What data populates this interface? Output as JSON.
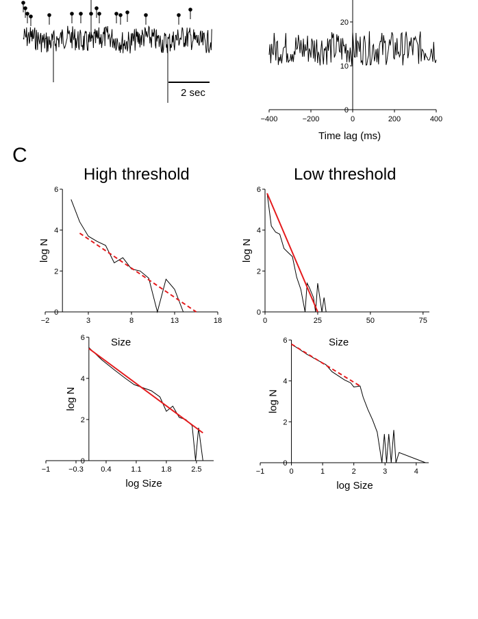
{
  "panel_letter": "C",
  "scale_bar_label": "2 sec",
  "chart_data": [
    {
      "id": "trace",
      "type": "line",
      "title": "",
      "xlabel": "",
      "ylabel": "",
      "annotations": [
        "2 sec"
      ],
      "description_series": "voltage trace with threshold-crossing event markers"
    },
    {
      "id": "xcorr",
      "type": "line",
      "title": "",
      "xlabel": "Time lag (ms)",
      "ylabel": "",
      "xlim": [
        -400,
        400
      ],
      "ylim": [
        0,
        25
      ],
      "xticks": [
        -400,
        -200,
        0,
        200,
        400
      ],
      "xtick_labels": [
        "−400",
        "−200",
        "0",
        "200",
        "400"
      ],
      "yticks": [
        0,
        10,
        20
      ],
      "ytick_labels": [
        "0",
        "10",
        "20"
      ],
      "series": [
        {
          "name": "cross-correlation",
          "x": [
            -400,
            400
          ],
          "mean": 14,
          "spread": 3
        }
      ]
    },
    {
      "id": "hist-high",
      "type": "line",
      "title": "High threshold",
      "xlabel": "",
      "ylabel": "log N",
      "xlim": [
        -2,
        18
      ],
      "ylim": [
        0,
        6
      ],
      "xticks": [
        -2,
        3,
        8,
        13,
        18
      ],
      "xtick_labels": [
        "−2",
        "3",
        "8",
        "13",
        "18"
      ],
      "yticks": [
        0,
        2,
        4,
        6
      ],
      "ytick_labels": [
        "0",
        "2",
        "4",
        "6"
      ],
      "annotations": [
        "Size"
      ],
      "series": [
        {
          "name": "data",
          "x": [
            1,
            2,
            3,
            4,
            5,
            6,
            7,
            8,
            9,
            10,
            11,
            12,
            13,
            14
          ],
          "y": [
            5.5,
            4.4,
            3.7,
            3.45,
            3.25,
            2.4,
            2.65,
            2.1,
            2.0,
            1.65,
            0,
            1.6,
            1.1,
            0
          ]
        },
        {
          "name": "fit",
          "style": "dashed",
          "x": [
            2,
            15.5
          ],
          "y": [
            3.85,
            0
          ]
        }
      ]
    },
    {
      "id": "hist-low",
      "type": "line",
      "title": "Low threshold",
      "xlabel": "",
      "ylabel": "log N",
      "xlim": [
        0,
        78
      ],
      "ylim": [
        0,
        6
      ],
      "xticks": [
        0,
        25,
        50,
        75
      ],
      "xtick_labels": [
        "0",
        "25",
        "50",
        "75"
      ],
      "yticks": [
        0,
        2,
        4,
        6
      ],
      "ytick_labels": [
        "0",
        "2",
        "4",
        "6"
      ],
      "annotations": [
        "Size"
      ],
      "series": [
        {
          "name": "data",
          "x": [
            1,
            3,
            5,
            7,
            9,
            11,
            13,
            15,
            17,
            19,
            20,
            21,
            23,
            24,
            25,
            27,
            28,
            29,
            30
          ],
          "y": [
            5.8,
            4.2,
            3.9,
            3.8,
            3.1,
            2.9,
            2.7,
            1.7,
            1.1,
            0,
            1.4,
            1.2,
            0.7,
            0,
            1.4,
            0,
            0.7,
            0,
            0
          ]
        },
        {
          "name": "fit",
          "style": "solid",
          "x": [
            1,
            25
          ],
          "y": [
            5.8,
            0
          ]
        }
      ]
    },
    {
      "id": "loglog-high",
      "type": "line",
      "title": "",
      "xlabel": "log Size",
      "ylabel": "log N",
      "xlim": [
        -1,
        2.9
      ],
      "ylim": [
        0,
        6
      ],
      "xticks": [
        -1,
        -0.3,
        0.4,
        1.1,
        1.8,
        2.5
      ],
      "xtick_labels": [
        "−1",
        "−0.3",
        "0.4",
        "1.1",
        "1.8",
        "2.5"
      ],
      "yticks": [
        0,
        2,
        4,
        6
      ],
      "ytick_labels": [
        "0",
        "2",
        "4",
        "6"
      ],
      "series": [
        {
          "name": "data",
          "x": [
            0,
            0.3,
            0.6,
            0.85,
            1.05,
            1.25,
            1.45,
            1.65,
            1.8,
            1.95,
            2.1,
            2.25,
            2.4,
            2.48,
            2.55,
            2.65,
            2.85
          ],
          "y": [
            5.5,
            4.9,
            4.4,
            4.0,
            3.7,
            3.55,
            3.4,
            3.1,
            2.4,
            2.65,
            2.1,
            2.0,
            1.7,
            0,
            1.6,
            0,
            0
          ]
        },
        {
          "name": "fit",
          "style": "solid",
          "x": [
            0,
            2.65
          ],
          "y": [
            5.45,
            1.35
          ]
        }
      ]
    },
    {
      "id": "loglog-low",
      "type": "line",
      "title": "",
      "xlabel": "log Size",
      "ylabel": "log N",
      "xlim": [
        -1,
        4.4
      ],
      "ylim": [
        0,
        6
      ],
      "xticks": [
        -1,
        0,
        1,
        2,
        3,
        4
      ],
      "xtick_labels": [
        "−1",
        "0",
        "1",
        "2",
        "3",
        "4"
      ],
      "yticks": [
        0,
        2,
        4,
        6
      ],
      "ytick_labels": [
        "0",
        "2",
        "4",
        "6"
      ],
      "series": [
        {
          "name": "data",
          "x": [
            0,
            0.5,
            0.85,
            1.1,
            1.3,
            1.5,
            1.7,
            1.9,
            2.0,
            2.2,
            2.3,
            2.45,
            2.6,
            2.75,
            2.9,
            2.98,
            3.05,
            3.12,
            3.2,
            3.28,
            3.35,
            3.45,
            4.3
          ],
          "y": [
            5.8,
            5.3,
            5.0,
            4.8,
            4.45,
            4.25,
            4.05,
            3.9,
            3.7,
            3.75,
            3.2,
            2.6,
            2.1,
            1.5,
            0,
            1.4,
            0,
            1.4,
            0,
            1.6,
            0,
            0.5,
            0
          ]
        },
        {
          "name": "fit",
          "style": "dashed",
          "x": [
            0,
            2.2
          ],
          "y": [
            5.8,
            3.75
          ]
        }
      ]
    }
  ]
}
